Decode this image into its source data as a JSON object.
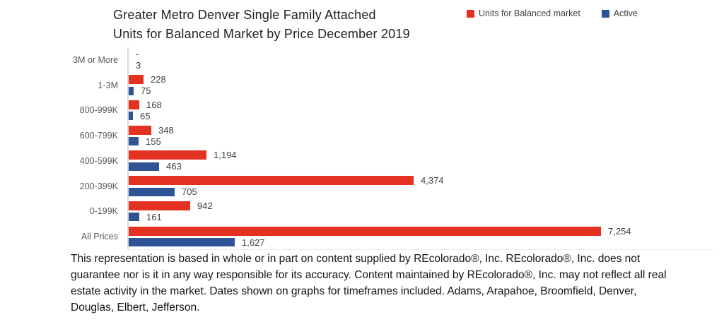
{
  "chart_data": {
    "type": "bar",
    "orientation": "horizontal",
    "title": "Greater Metro Denver Single Family Attached Units for Balanced Market by Price December 2019",
    "title_lines": [
      "Greater Metro Denver Single Family Attached",
      "Units for Balanced Market by Price December 2019"
    ],
    "categories": [
      "3M or More",
      "1-3M",
      "800-999K",
      "600-799K",
      "400-599K",
      "200-399K",
      "0-199K",
      "All Prices"
    ],
    "series": [
      {
        "name": "Units for Balanced market",
        "color": "#e33122",
        "values": [
          0,
          228,
          168,
          348,
          1194,
          4374,
          942,
          7254
        ],
        "labels": [
          "-",
          "228",
          "168",
          "348",
          "1,194",
          "4,374",
          "942",
          "7,254"
        ]
      },
      {
        "name": "Active",
        "color": "#2f5496",
        "values": [
          3,
          75,
          65,
          155,
          463,
          705,
          161,
          1627
        ],
        "labels": [
          "3",
          "75",
          "65",
          "155",
          "463",
          "705",
          "161",
          "1,627"
        ]
      }
    ],
    "xlim": [
      0,
      8900
    ],
    "grid": false,
    "legend_position": "top-right",
    "value_labels": true,
    "axis_color": "#d9d9d9"
  },
  "disclaimer": "This representation is based in whole or in part on content supplied by REcolorado®, Inc. REcolorado®, Inc. does not guarantee nor is it in any way responsible for its accuracy. Content maintained by REcolorado®, Inc. may not reflect all real estate activity in the market. Dates shown on graphs for timeframes included.  Adams, Arapahoe, Broomfield, Denver, Douglas, Elbert, Jefferson."
}
